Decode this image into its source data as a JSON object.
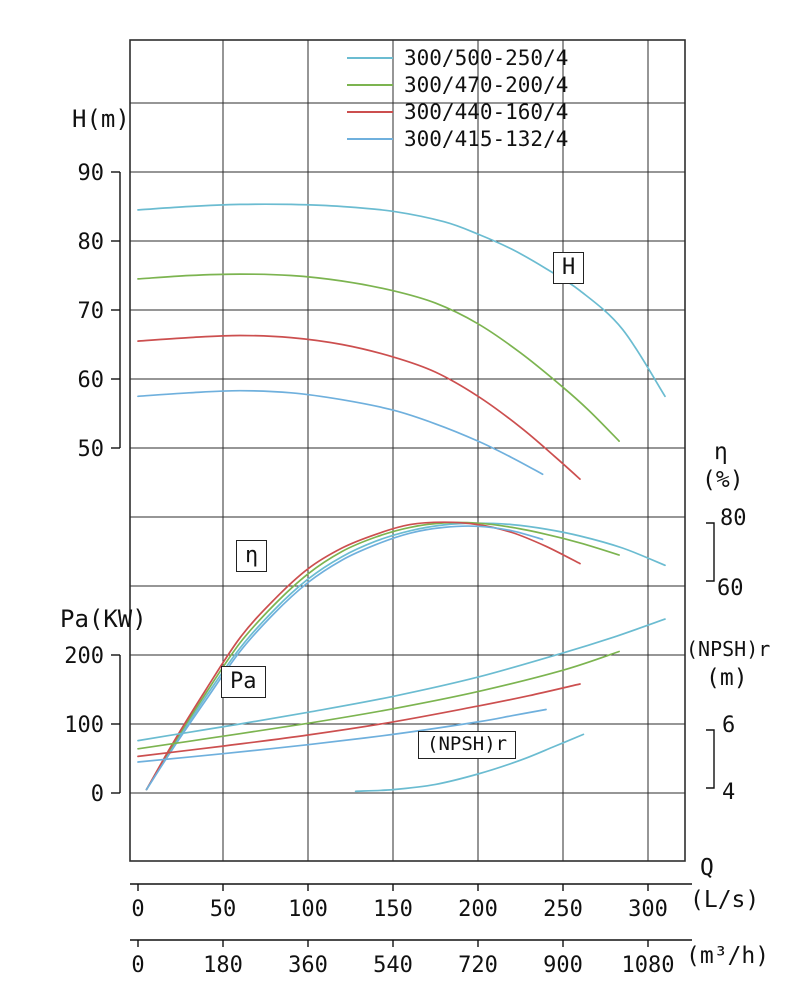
{
  "figure": {
    "background": "#ffffff",
    "grid_color": "#2e2e2e",
    "accent_colors": {
      "model_500_250": "#6bbcd1",
      "model_470_200": "#7cb450",
      "model_440_160": "#cc4f4f",
      "model_415_132": "#6fb0dd"
    }
  },
  "labels": {
    "h_axis_title": "H(m)",
    "pa_axis_title": "Pa(KW)",
    "eta_symbol": "η",
    "eta_unit": "(%)",
    "npshr_title": "(NPSH)r",
    "npshr_unit": "(m)",
    "q_label": "Q",
    "q_unit": "(L/s)",
    "m3h_unit": "(m³/h)",
    "box_h": "H",
    "box_eta": "η",
    "box_pa": "Pa",
    "box_npshr": "(NPSH)r"
  },
  "legend": {
    "items": [
      {
        "label": "300/500-250/4",
        "color": "#6bbcd1"
      },
      {
        "label": "300/470-200/4",
        "color": "#7cb450"
      },
      {
        "label": "300/440-160/4",
        "color": "#cc4f4f"
      },
      {
        "label": "300/415-132/4",
        "color": "#6fb0dd"
      }
    ]
  },
  "chart_data": {
    "type": "line",
    "title": "Pump performance curves (H, η, Pa, (NPSH)r vs Q)",
    "grid": true,
    "legend_position": "top-right",
    "axes": {
      "H": {
        "label": "H(m)",
        "ticks": [
          90,
          80,
          70,
          60,
          50
        ],
        "range": [
          44,
          92
        ]
      },
      "Pa": {
        "label": "Pa(KW)",
        "ticks": [
          200,
          100,
          0
        ],
        "range": [
          0,
          260
        ]
      },
      "eta": {
        "label": "η(%)",
        "ticks": [
          80,
          60
        ],
        "range": [
          0,
          82
        ]
      },
      "NPSH": {
        "label": "(NPSH)r(m)",
        "ticks": [
          6,
          4
        ],
        "range": [
          4,
          6
        ]
      },
      "Q_Ls": {
        "label": "Q (L/s)",
        "ticks": [
          0,
          50,
          100,
          150,
          200,
          250,
          300
        ],
        "range": [
          0,
          313
        ]
      },
      "Q_m3h": {
        "label": "Q (m³/h)",
        "ticks": [
          0,
          180,
          360,
          540,
          720,
          900,
          1080
        ],
        "range": [
          0,
          1127
        ]
      }
    },
    "series": [
      {
        "name": "300/500-250/4",
        "quantity": "H",
        "unit": "m",
        "axis": "H",
        "color": "#6bbcd1",
        "points": [
          [
            0,
            84.5
          ],
          [
            30,
            85
          ],
          [
            60,
            85.3
          ],
          [
            90,
            85.3
          ],
          [
            120,
            85
          ],
          [
            150,
            84.3
          ],
          [
            180,
            82.8
          ],
          [
            200,
            81
          ],
          [
            220,
            78.8
          ],
          [
            240,
            76
          ],
          [
            260,
            72.8
          ],
          [
            285,
            67.2
          ],
          [
            310,
            57.5
          ]
        ]
      },
      {
        "name": "300/470-200/4",
        "quantity": "H",
        "unit": "m",
        "axis": "H",
        "color": "#7cb450",
        "points": [
          [
            0,
            74.5
          ],
          [
            30,
            75
          ],
          [
            60,
            75.2
          ],
          [
            90,
            75
          ],
          [
            120,
            74.2
          ],
          [
            150,
            72.8
          ],
          [
            175,
            71
          ],
          [
            200,
            68
          ],
          [
            225,
            63.8
          ],
          [
            250,
            58.8
          ],
          [
            265,
            55.5
          ],
          [
            283,
            51
          ]
        ]
      },
      {
        "name": "300/440-160/4",
        "quantity": "H",
        "unit": "m",
        "axis": "H",
        "color": "#cc4f4f",
        "points": [
          [
            0,
            65.5
          ],
          [
            30,
            66
          ],
          [
            60,
            66.3
          ],
          [
            90,
            66
          ],
          [
            120,
            65
          ],
          [
            150,
            63.2
          ],
          [
            175,
            61
          ],
          [
            200,
            57.5
          ],
          [
            225,
            53
          ],
          [
            245,
            48.8
          ],
          [
            260,
            45.5
          ]
        ]
      },
      {
        "name": "300/415-132/4",
        "quantity": "H",
        "unit": "m",
        "axis": "H",
        "color": "#6fb0dd",
        "points": [
          [
            0,
            57.5
          ],
          [
            30,
            58
          ],
          [
            60,
            58.3
          ],
          [
            90,
            58
          ],
          [
            120,
            57
          ],
          [
            150,
            55.5
          ],
          [
            175,
            53.5
          ],
          [
            200,
            51
          ],
          [
            220,
            48.6
          ],
          [
            238,
            46.2
          ]
        ]
      },
      {
        "name": "300/500-250/4",
        "quantity": "eta",
        "unit": "%",
        "axis": "eta",
        "color": "#6bbcd1",
        "points": [
          [
            5,
            1
          ],
          [
            20,
            13
          ],
          [
            40,
            28
          ],
          [
            60,
            42
          ],
          [
            80,
            53
          ],
          [
            100,
            62
          ],
          [
            120,
            68.5
          ],
          [
            140,
            73
          ],
          [
            160,
            76
          ],
          [
            180,
            77.7
          ],
          [
            200,
            78.2
          ],
          [
            220,
            77.8
          ],
          [
            240,
            76.5
          ],
          [
            260,
            74.5
          ],
          [
            285,
            71
          ],
          [
            310,
            66
          ]
        ]
      },
      {
        "name": "300/470-200/4",
        "quantity": "eta",
        "unit": "%",
        "axis": "eta",
        "color": "#7cb450",
        "points": [
          [
            5,
            1
          ],
          [
            20,
            13.5
          ],
          [
            40,
            29
          ],
          [
            60,
            43.5
          ],
          [
            80,
            54.5
          ],
          [
            100,
            63.5
          ],
          [
            120,
            70
          ],
          [
            140,
            74.2
          ],
          [
            160,
            77
          ],
          [
            180,
            78.3
          ],
          [
            200,
            78.2
          ],
          [
            220,
            77
          ],
          [
            240,
            75
          ],
          [
            260,
            72.5
          ],
          [
            283,
            69
          ]
        ]
      },
      {
        "name": "300/440-160/4",
        "quantity": "eta",
        "unit": "%",
        "axis": "eta",
        "color": "#cc4f4f",
        "points": [
          [
            5,
            1
          ],
          [
            20,
            14
          ],
          [
            40,
            30
          ],
          [
            60,
            45
          ],
          [
            80,
            56
          ],
          [
            100,
            65
          ],
          [
            120,
            71
          ],
          [
            140,
            75
          ],
          [
            160,
            77.8
          ],
          [
            180,
            78.5
          ],
          [
            200,
            77.8
          ],
          [
            220,
            75.5
          ],
          [
            240,
            71.5
          ],
          [
            260,
            66.5
          ]
        ]
      },
      {
        "name": "300/415-132/4",
        "quantity": "eta",
        "unit": "%",
        "axis": "eta",
        "color": "#6fb0dd",
        "points": [
          [
            5,
            1
          ],
          [
            20,
            12.5
          ],
          [
            40,
            27
          ],
          [
            60,
            41
          ],
          [
            80,
            52
          ],
          [
            100,
            61
          ],
          [
            120,
            67.5
          ],
          [
            140,
            72
          ],
          [
            160,
            75.3
          ],
          [
            180,
            77
          ],
          [
            200,
            77.3
          ],
          [
            220,
            76
          ],
          [
            238,
            73.5
          ]
        ]
      },
      {
        "name": "300/500-250/4",
        "quantity": "Pa",
        "unit": "KW",
        "axis": "Pa",
        "color": "#6bbcd1",
        "points": [
          [
            0,
            76
          ],
          [
            30,
            88
          ],
          [
            60,
            100
          ],
          [
            100,
            117
          ],
          [
            150,
            140
          ],
          [
            200,
            168
          ],
          [
            250,
            203
          ],
          [
            280,
            226
          ],
          [
            310,
            252
          ]
        ]
      },
      {
        "name": "300/470-200/4",
        "quantity": "Pa",
        "unit": "KW",
        "axis": "Pa",
        "color": "#7cb450",
        "points": [
          [
            0,
            64
          ],
          [
            30,
            75
          ],
          [
            60,
            86
          ],
          [
            100,
            101
          ],
          [
            150,
            122
          ],
          [
            200,
            147
          ],
          [
            250,
            178
          ],
          [
            283,
            205
          ]
        ]
      },
      {
        "name": "300/440-160/4",
        "quantity": "Pa",
        "unit": "KW",
        "axis": "Pa",
        "color": "#cc4f4f",
        "points": [
          [
            0,
            53
          ],
          [
            50,
            68
          ],
          [
            100,
            84
          ],
          [
            150,
            103
          ],
          [
            200,
            126
          ],
          [
            230,
            141
          ],
          [
            260,
            158
          ]
        ]
      },
      {
        "name": "300/415-132/4",
        "quantity": "Pa",
        "unit": "KW",
        "axis": "Pa",
        "color": "#6fb0dd",
        "points": [
          [
            0,
            45
          ],
          [
            50,
            57
          ],
          [
            100,
            70
          ],
          [
            150,
            85
          ],
          [
            200,
            103
          ],
          [
            220,
            112
          ],
          [
            240,
            121
          ]
        ]
      },
      {
        "name": "300/500-250/4",
        "quantity": "NPSHr",
        "unit": "m",
        "axis": "NPSH",
        "color": "#6bbcd1",
        "points": [
          [
            128,
            4.05
          ],
          [
            150,
            4.1
          ],
          [
            175,
            4.25
          ],
          [
            200,
            4.55
          ],
          [
            225,
            4.95
          ],
          [
            245,
            5.35
          ],
          [
            262,
            5.7
          ]
        ]
      }
    ]
  }
}
